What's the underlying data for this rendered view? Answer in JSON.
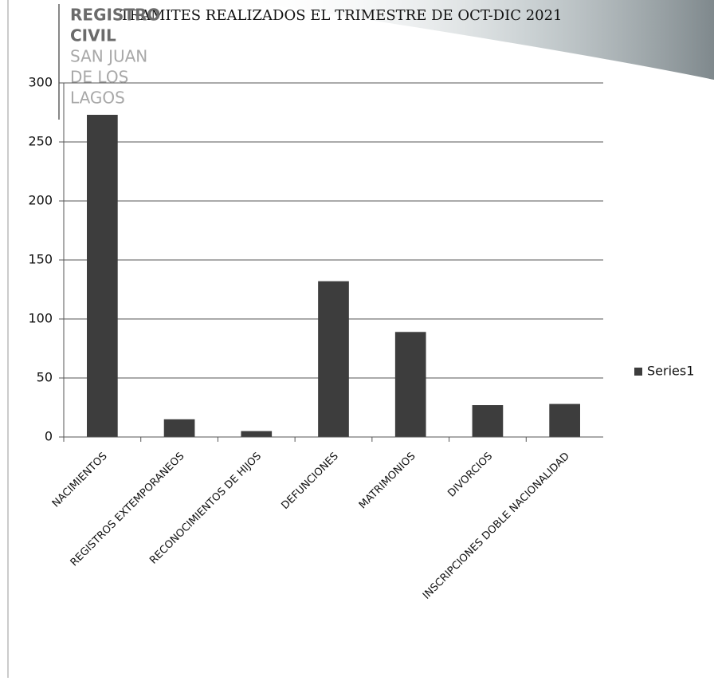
{
  "header": {
    "logo": [
      "REGISTRO",
      "CIVIL",
      "SAN JUAN",
      "DE LOS",
      "LAGOS"
    ]
  },
  "chart_data": {
    "type": "bar",
    "title": "TRAMITES REALIZADOS EL TRIMESTRE DE OCT-DIC 2021",
    "categories": [
      "NACIMIENTOS",
      "REGISTROS EXTEMPORANEOS",
      "RECONOCIMIENTOS DE HIJOS",
      "DEFUNCIONES",
      "MATRIMONIOS",
      "DIVORCIOS",
      "INSCRIPCIONES DOBLE NACIONALIDAD"
    ],
    "series": [
      {
        "name": "Series1",
        "color": "#3d3d3d",
        "values": [
          273,
          15,
          5,
          132,
          89,
          27,
          28
        ]
      }
    ],
    "ylim": [
      0,
      300
    ],
    "yticks": [
      0,
      50,
      100,
      150,
      200,
      250,
      300
    ],
    "grid": true,
    "legend": "right"
  }
}
